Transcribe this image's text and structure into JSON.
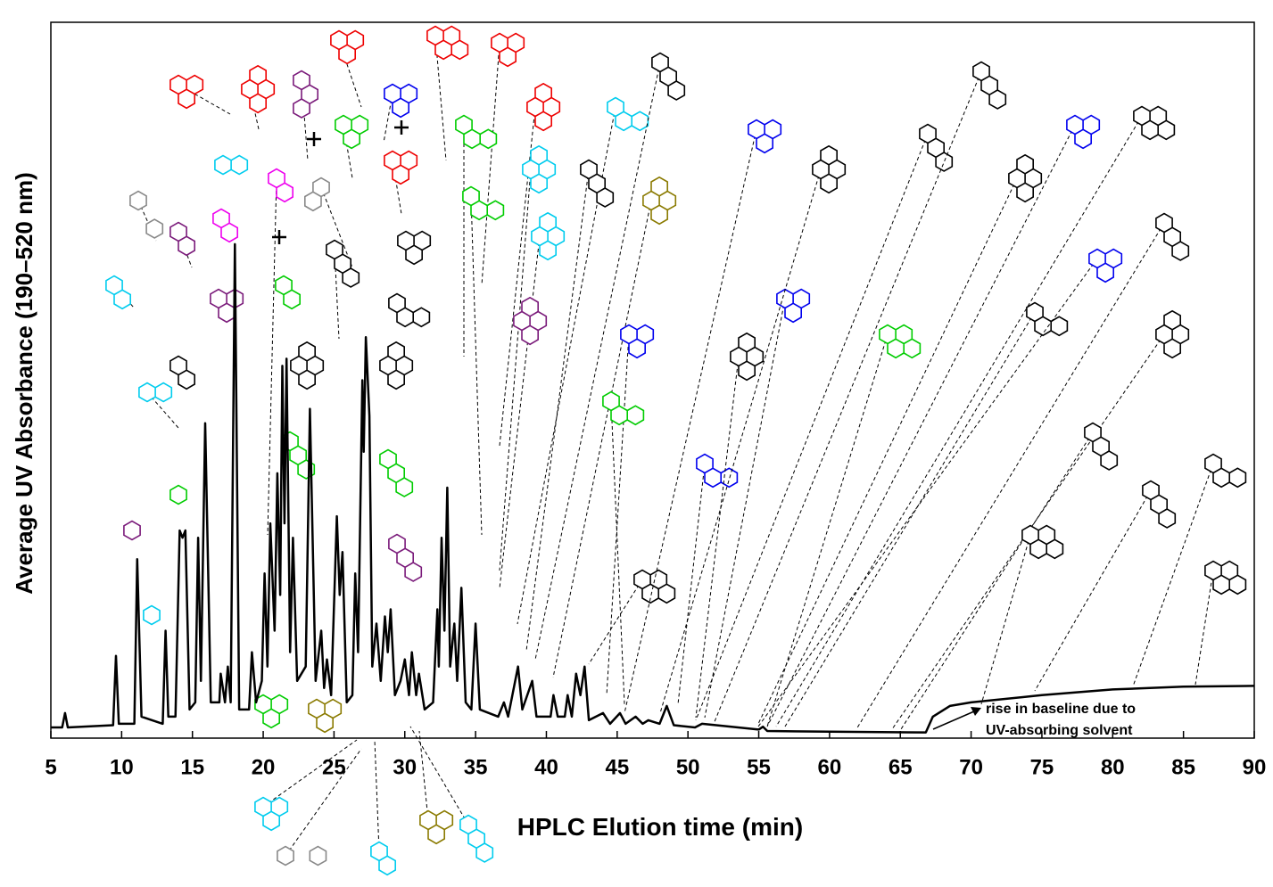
{
  "chart_data": {
    "type": "line",
    "x_label": "HPLC Elution time (min)",
    "y_label": "Average UV Absorbance (190–520 nm)",
    "annotation": [
      "rise in baseline due to",
      "UV-absorbing solvent"
    ],
    "xlim": [
      5,
      90
    ],
    "xticks": [
      5,
      10,
      15,
      20,
      25,
      30,
      35,
      40,
      45,
      50,
      55,
      60,
      65,
      70,
      75,
      80,
      85,
      90
    ],
    "ylim": [
      0,
      100
    ],
    "color": "#000000",
    "x": [
      5.0,
      5.8,
      6.0,
      6.2,
      9.4,
      9.6,
      9.8,
      10.9,
      11.1,
      11.4,
      12.9,
      13.1,
      13.3,
      13.8,
      14.1,
      14.3,
      14.5,
      14.8,
      15.2,
      15.4,
      15.6,
      15.9,
      16.3,
      16.9,
      17.0,
      17.3,
      17.5,
      17.7,
      18.0,
      18.3,
      19.0,
      19.2,
      19.5,
      19.9,
      20.1,
      20.3,
      20.5,
      20.8,
      21.0,
      21.2,
      21.35,
      21.5,
      21.65,
      21.9,
      22.1,
      22.4,
      23.0,
      23.3,
      23.7,
      24.1,
      24.3,
      24.5,
      24.8,
      25.2,
      25.4,
      25.6,
      25.9,
      26.3,
      26.5,
      26.7,
      27.0,
      27.1,
      27.25,
      27.5,
      27.7,
      28.0,
      28.3,
      28.6,
      28.8,
      29.0,
      29.3,
      29.7,
      30.0,
      30.3,
      30.5,
      30.8,
      31.0,
      31.4,
      32.0,
      32.3,
      32.4,
      32.6,
      32.8,
      33.0,
      33.2,
      33.5,
      33.7,
      34.0,
      34.3,
      34.7,
      35.0,
      35.3,
      36.6,
      37.0,
      37.3,
      38.0,
      38.3,
      39.0,
      39.3,
      40.3,
      40.5,
      40.8,
      41.3,
      41.5,
      41.8,
      42.1,
      42.4,
      42.7,
      43.0,
      44.0,
      44.5,
      45.2,
      45.6,
      46.3,
      46.8,
      47.2,
      48.0,
      48.5,
      49.0,
      50.5,
      51.0,
      55.0,
      55.3,
      55.6,
      60,
      66.8,
      67.3,
      68.5,
      70,
      75,
      80,
      85,
      90
    ],
    "values": [
      1.5,
      1.5,
      3.5,
      1.5,
      1.8,
      11.5,
      2,
      2,
      25,
      3,
      2,
      15,
      3,
      3,
      29,
      28,
      29,
      4,
      5,
      28,
      8,
      44,
      5,
      5,
      9,
      5,
      10,
      5,
      69,
      4,
      4,
      12,
      5,
      8,
      23,
      10,
      30,
      15,
      37,
      20,
      52,
      30,
      53,
      12,
      28,
      8,
      10,
      46,
      8,
      15,
      7,
      11,
      6,
      31,
      20,
      26,
      5,
      6,
      23,
      12,
      50,
      40,
      56,
      45,
      10,
      16,
      8,
      17,
      12,
      18,
      6,
      8,
      11,
      6,
      12,
      6,
      9,
      4,
      5,
      18,
      10,
      28,
      15,
      35,
      10,
      16,
      8,
      21,
      5,
      4,
      16,
      4,
      3,
      5,
      3,
      10,
      4,
      8,
      3,
      3,
      6,
      3,
      3,
      6,
      3,
      9,
      6,
      10,
      2.5,
      3.5,
      2,
      3.5,
      2,
      3,
      2,
      2.5,
      2,
      4.5,
      1.8,
      1.5,
      2,
      1.2,
      1.6,
      1.0,
      0.9,
      0.8,
      3,
      4.5,
      5,
      6,
      6.8,
      7.2,
      7.3
    ]
  }
}
